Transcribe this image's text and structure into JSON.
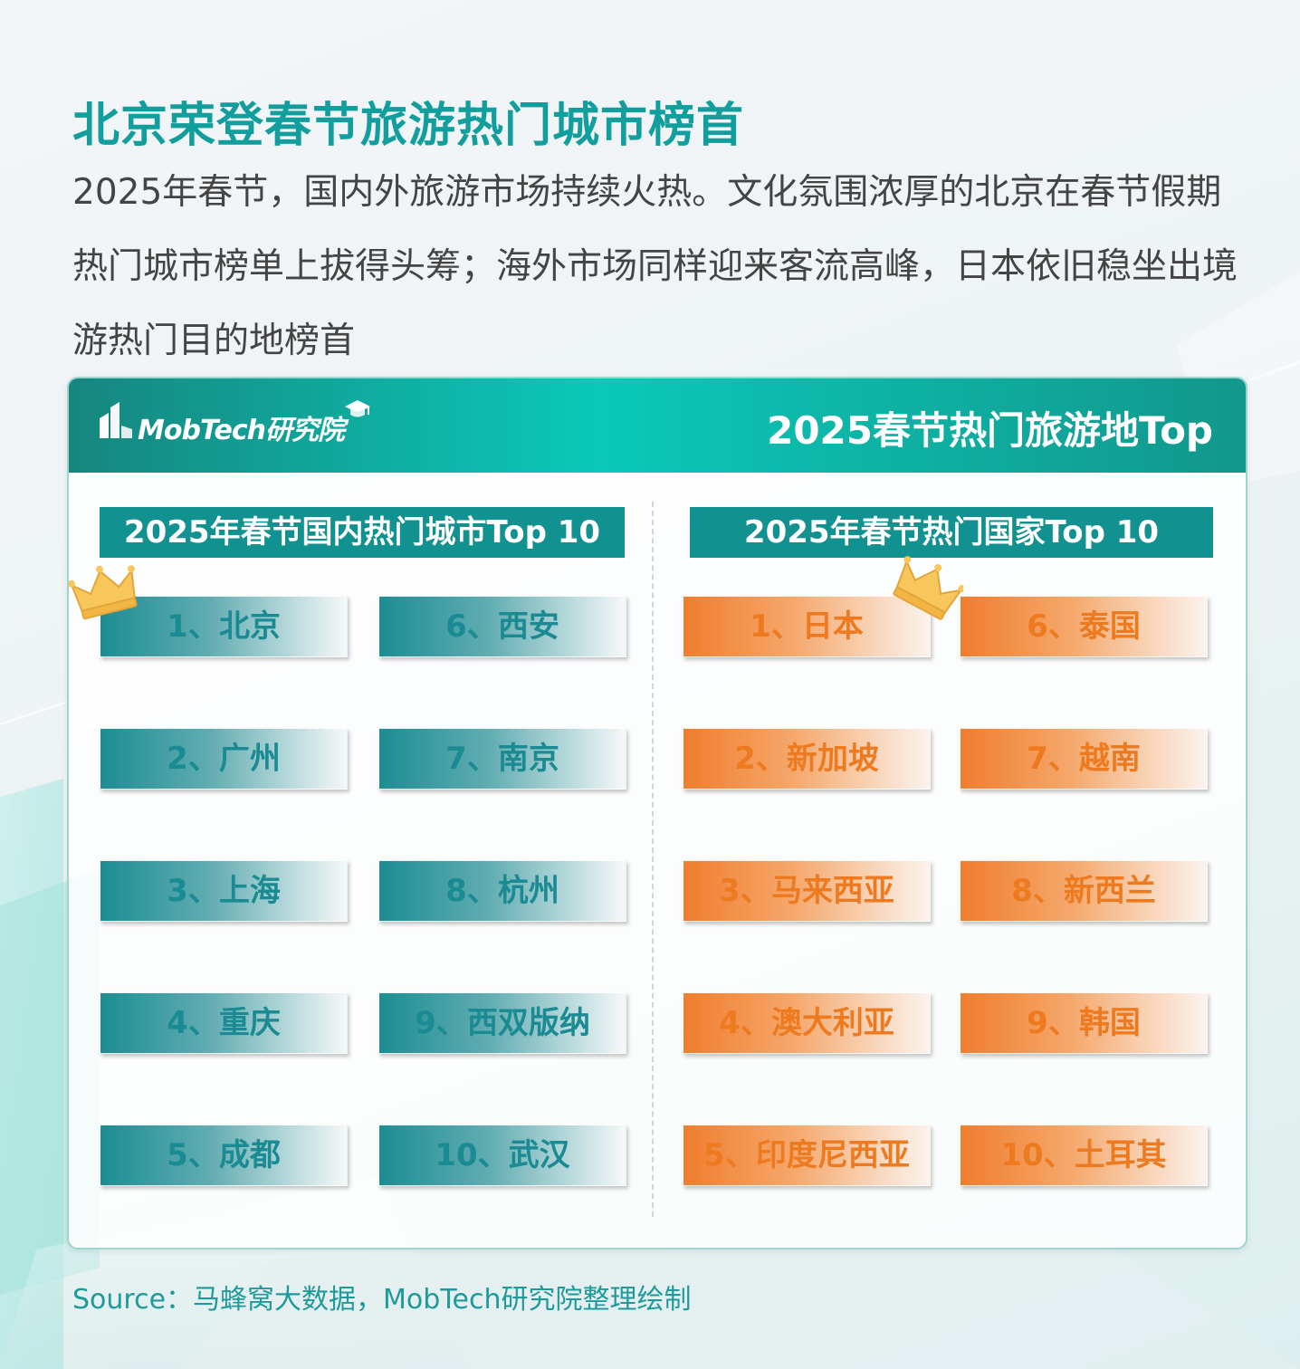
{
  "title": "北京荣登春节旅游热门城市榜首",
  "intro": "2025年春节，国内外旅游市场持续火热。文化氛围浓厚的北京在春节假期热门城市榜单上拔得头筹；海外市场同样迎来客流高峰，日本依旧稳坐出境游热门目的地榜首",
  "card": {
    "logo_text": "MobTech研究院",
    "header_title": "2025春节热门旅游地Top",
    "domestic": {
      "label": "2025年春节国内热门城市Top 10",
      "items": [
        "1、北京",
        "2、广州",
        "3、上海",
        "4、重庆",
        "5、成都",
        "6、西安",
        "7、南京",
        "8、杭州",
        "9、西双版纳",
        "10、武汉"
      ]
    },
    "international": {
      "label": "2025年春节热门国家Top 10",
      "items": [
        "1、日本",
        "2、新加坡",
        "3、马来西亚",
        "4、澳大利亚",
        "5、印度尼西亚",
        "6、泰国",
        "7、越南",
        "8、新西兰",
        "9、韩国",
        "10、土耳其"
      ]
    }
  },
  "source": "Source：马蜂窝大数据，MobTech研究院整理绘制",
  "icons": {
    "logo": "mobtech-logo-icon",
    "cap": "graduation-cap-icon",
    "crown": "crown-icon"
  },
  "colors": {
    "title": "#139e9e",
    "teal": "#11918f",
    "orange": "#ee7a20",
    "source": "#1e9a9b"
  }
}
